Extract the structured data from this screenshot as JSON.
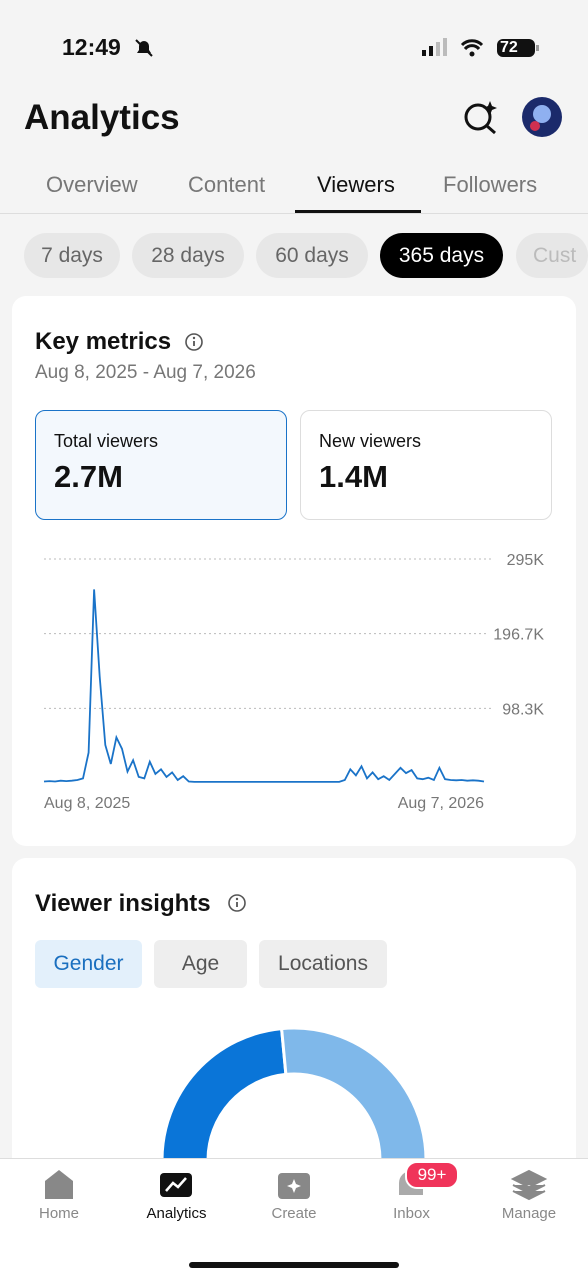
{
  "status_bar": {
    "time": "12:49",
    "battery": "72"
  },
  "header": {
    "title": "Analytics"
  },
  "tabs": [
    "Overview",
    "Content",
    "Viewers",
    "Followers"
  ],
  "active_tab": 2,
  "ranges": [
    "7 days",
    "28 days",
    "60 days",
    "365 days",
    "Cust"
  ],
  "active_range": 3,
  "key_metrics": {
    "title": "Key metrics",
    "date_range": "Aug 8, 2025 - Aug 7, 2026",
    "metrics": [
      {
        "label": "Total viewers",
        "value": "2.7M"
      },
      {
        "label": "New viewers",
        "value": "1.4M"
      }
    ],
    "selected_metric": 0,
    "chart": {
      "type": "line",
      "color": "#1a73c8",
      "x_labels": [
        "Aug 8, 2025",
        "Aug 7, 2026"
      ],
      "ylim": [
        0,
        295000
      ],
      "yticks": [
        {
          "value": 98300,
          "label": "98.3K"
        },
        {
          "value": 196700,
          "label": "196.7K"
        },
        {
          "value": 295000,
          "label": "295K"
        }
      ],
      "values": [
        2000,
        2500,
        2000,
        3000,
        2500,
        3000,
        4000,
        6000,
        40000,
        255000,
        140000,
        50000,
        25000,
        60000,
        45000,
        15000,
        30000,
        8000,
        6000,
        28000,
        12000,
        18000,
        8000,
        14000,
        4000,
        9000,
        2000,
        1500,
        1500,
        1500,
        1500,
        1500,
        1500,
        1500,
        1500,
        1500,
        1500,
        1500,
        1500,
        1500,
        1500,
        1500,
        1500,
        1500,
        1500,
        1500,
        1500,
        1500,
        1500,
        1500,
        1500,
        1500,
        1500,
        1500,
        4000,
        18000,
        10000,
        22000,
        6000,
        14000,
        5000,
        9000,
        4000,
        12000,
        20000,
        13000,
        17000,
        6000,
        5000,
        7000,
        4000,
        20000,
        5000,
        4000,
        3500,
        4000,
        3000,
        3500,
        3000,
        2000
      ]
    }
  },
  "insights": {
    "title": "Viewer insights",
    "tabs": [
      "Gender",
      "Age",
      "Locations"
    ],
    "active_tab": 0,
    "donut": {
      "values": [
        47,
        53
      ],
      "colors": [
        "#0a75d8",
        "#7fb8ea"
      ]
    }
  },
  "nav": [
    "Home",
    "Analytics",
    "Create",
    "Inbox",
    "Manage"
  ],
  "active_nav": 1,
  "inbox_badge": "99+"
}
